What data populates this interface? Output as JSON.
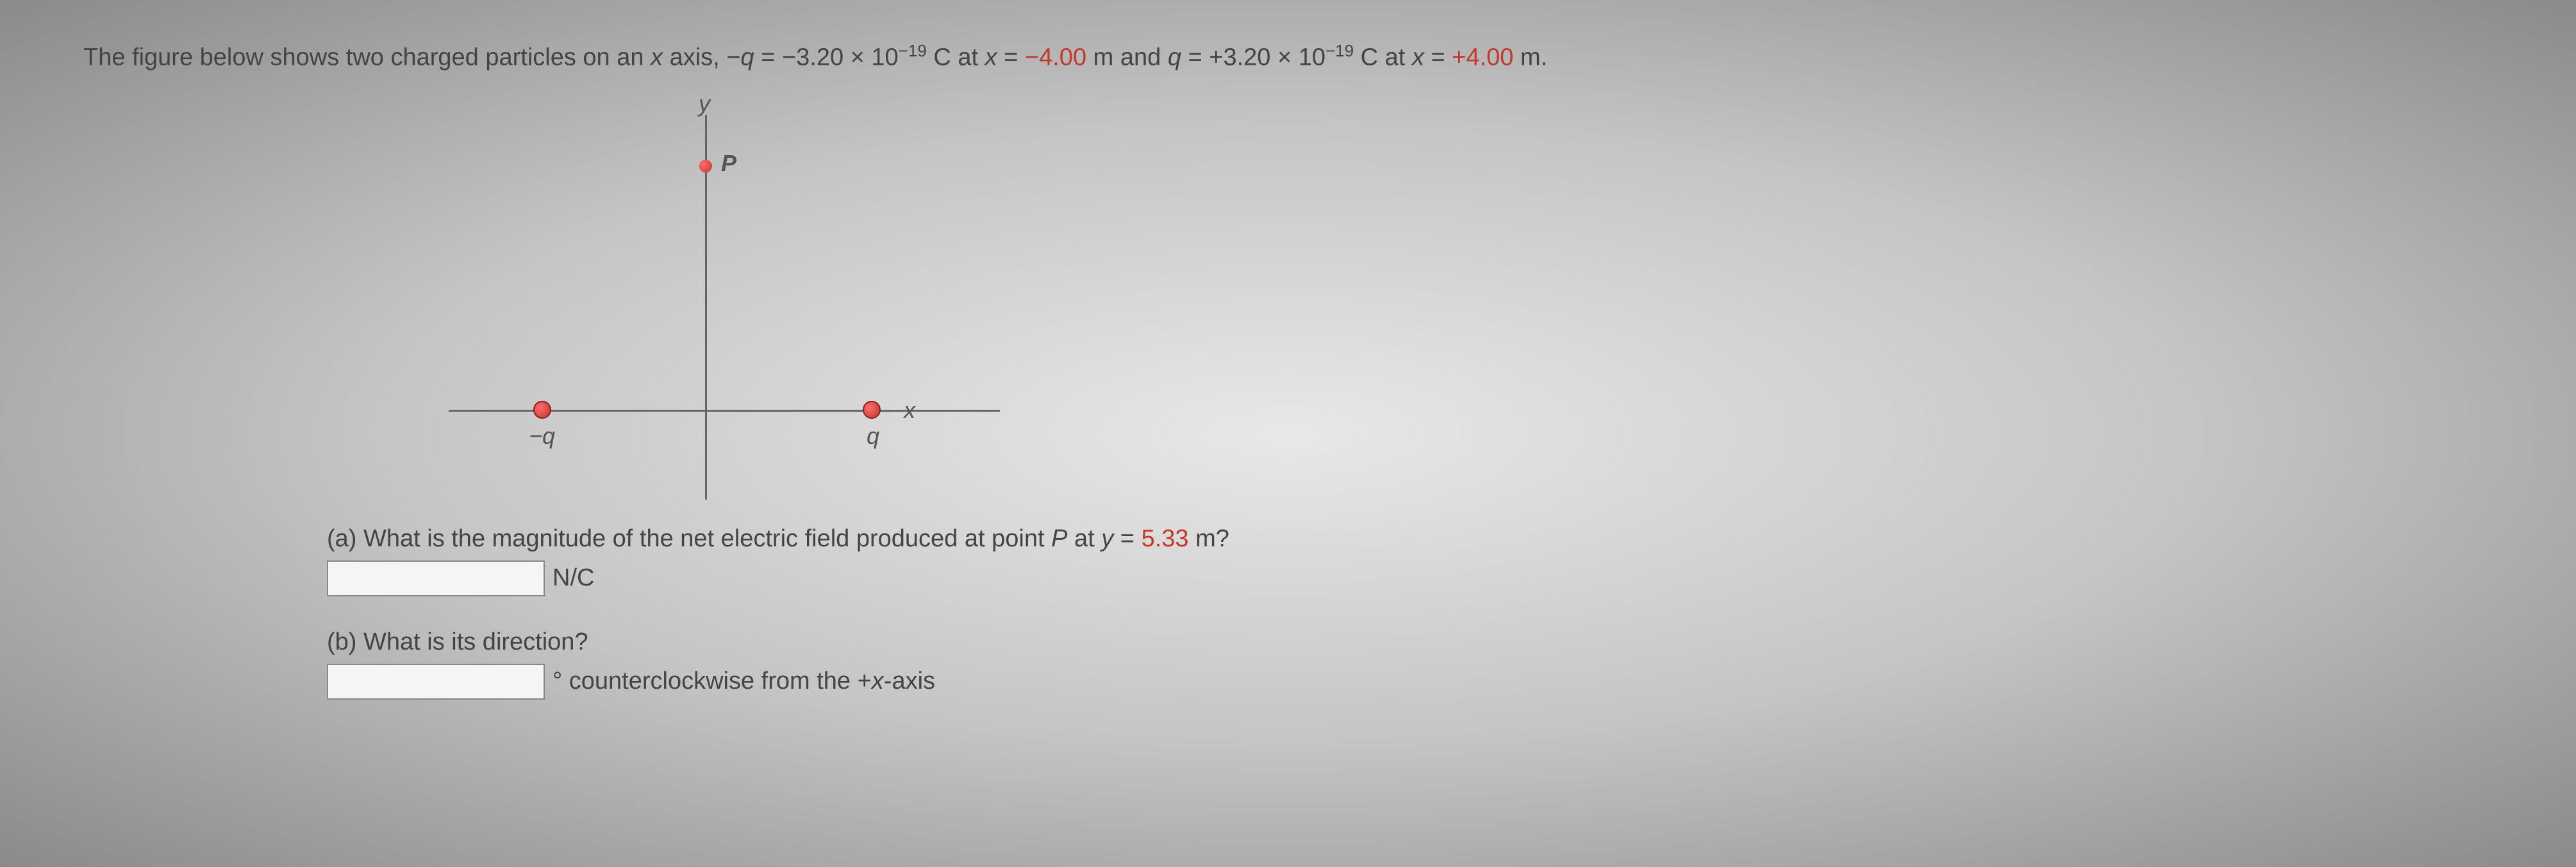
{
  "question": {
    "prefix": "The figure below shows two charged particles on an ",
    "x_var": "x",
    "mid1": " axis, −",
    "q_var1": "q",
    "eq1": " = ",
    "val1": "−3.20 × 10",
    "exp1": "−19",
    "unit1": " C at ",
    "x_var2": "x",
    "eq2": " = ",
    "xval1": "−4.00",
    "unit2": " m and ",
    "q_var2": "q",
    "eq3": " = ",
    "val2": "+3.20 × 10",
    "exp2": "−19",
    "unit3": " C at ",
    "x_var3": "x",
    "eq4": " = ",
    "xval2": "+4.00",
    "unit4": " m."
  },
  "diagram": {
    "label_y": "y",
    "label_x": "x",
    "label_p": "P",
    "label_neg": "−q",
    "label_pos": "q",
    "colors": {
      "charge_fill": "#c0392b",
      "axis": "#666666"
    }
  },
  "part_a": {
    "text_pre": "(a) What is the magnitude of the net electric field produced at point ",
    "p_var": "P",
    "text_mid": " at ",
    "y_var": "y",
    "eq": " = ",
    "yval": "5.33",
    "text_post": " m?",
    "unit": "N/C",
    "input_value": ""
  },
  "part_b": {
    "text": "(b) What is its direction?",
    "unit_pre": "° counterclockwise from the +",
    "x_var": "x",
    "unit_post": "-axis",
    "input_value": ""
  }
}
